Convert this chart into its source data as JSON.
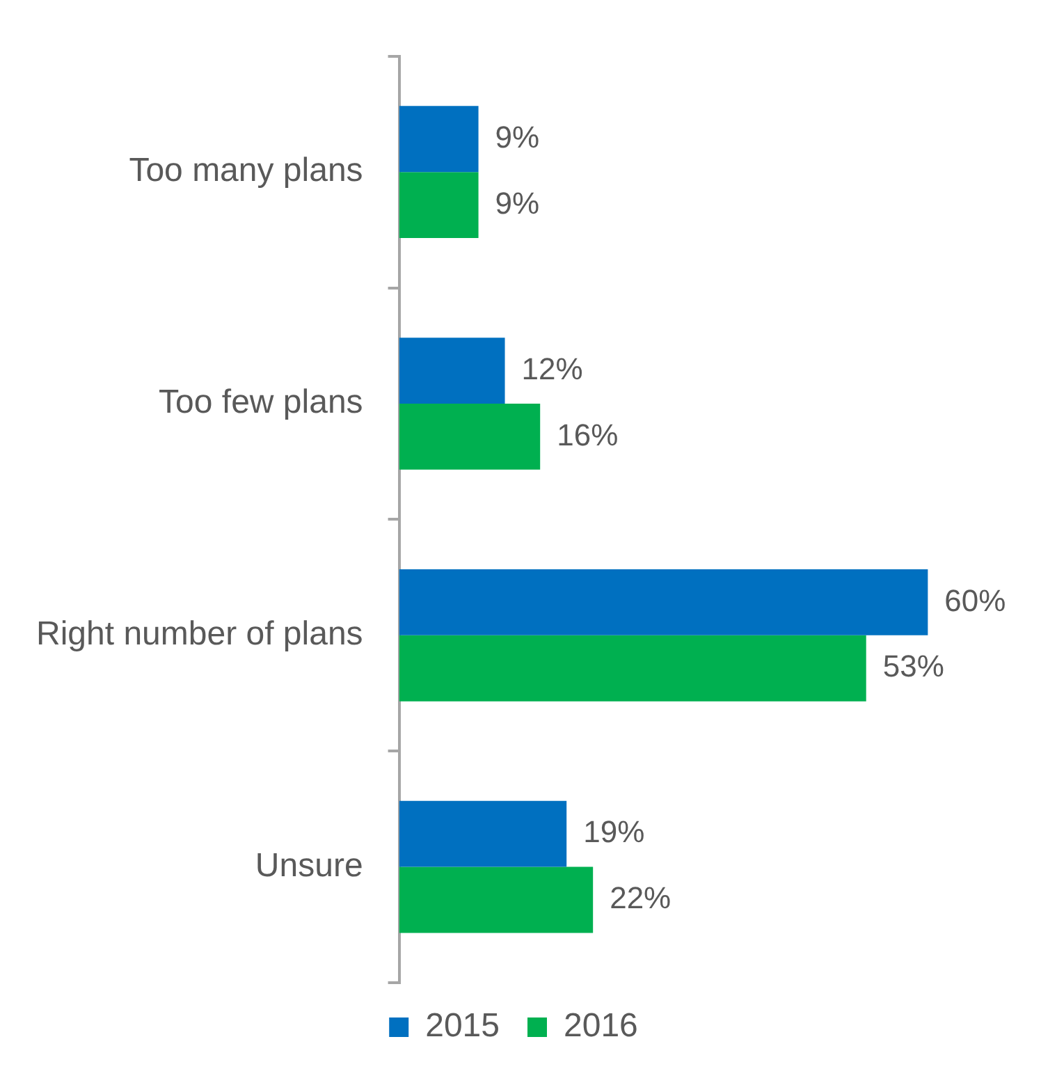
{
  "chart_data": {
    "type": "bar",
    "orientation": "horizontal",
    "categories": [
      "Too many plans",
      "Too few plans",
      "Right number of plans",
      "Unsure"
    ],
    "series": [
      {
        "name": "2015",
        "color": "#0070c0",
        "values": [
          9,
          12,
          60,
          19
        ],
        "value_labels": [
          "9%",
          "12%",
          "60%",
          "19%"
        ]
      },
      {
        "name": "2016",
        "color": "#00b050",
        "values": [
          9,
          16,
          53,
          22
        ],
        "value_labels": [
          "9%",
          "16%",
          "53%",
          "22%"
        ]
      }
    ],
    "legend": "bottom"
  }
}
